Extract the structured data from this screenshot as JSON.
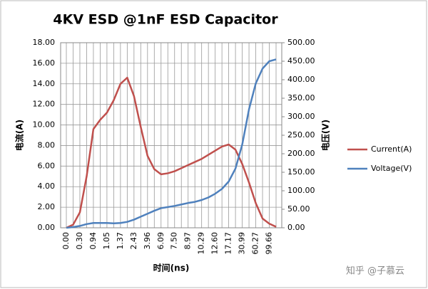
{
  "chart_data": {
    "type": "line",
    "title": "4KV ESD @1nF ESD Capacitor",
    "xlabel": "时间(ns)",
    "ylabel": "电流(A)",
    "y2label": "电压(V)",
    "categories": [
      "0.00",
      null,
      "0.30",
      null,
      "0.94",
      null,
      "1.05",
      null,
      "1.37",
      null,
      "2.43",
      null,
      "3.96",
      null,
      "6.09",
      null,
      "7.50",
      null,
      "8.97",
      null,
      "10.29",
      null,
      "12.60",
      null,
      "17.17",
      null,
      "30.99",
      null,
      "60.27",
      null,
      "99.66",
      null
    ],
    "series": [
      {
        "name": "Current(A)",
        "color": "#c0504d",
        "values": [
          0,
          0.3,
          1.5,
          5,
          9.6,
          10.5,
          11.2,
          12.4,
          14.0,
          14.6,
          12.8,
          9.8,
          7.0,
          5.7,
          5.2,
          5.3,
          5.5,
          5.8,
          6.1,
          6.4,
          6.7,
          7.1,
          7.5,
          7.9,
          8.1,
          7.6,
          6.2,
          4.4,
          2.4,
          0.9,
          0.4,
          0.1
        ]
      },
      {
        "name": "Voltage(V)",
        "color": "#4f81bd",
        "axis": "y2",
        "values": [
          0,
          2,
          5,
          10,
          13,
          13,
          13,
          12,
          13,
          16,
          22,
          30,
          38,
          46,
          53,
          56,
          59,
          63,
          67,
          70,
          75,
          82,
          92,
          105,
          125,
          160,
          225,
          320,
          390,
          430,
          450,
          455
        ]
      }
    ],
    "ylim": [
      0,
      18
    ],
    "yticks": [
      {
        "value": 0,
        "label": "0.00"
      },
      {
        "value": 2,
        "label": "2.00"
      },
      {
        "value": 4,
        "label": "4.00"
      },
      {
        "value": 6,
        "label": "6.00"
      },
      {
        "value": 8,
        "label": "8.00"
      },
      {
        "value": 10,
        "label": "10.00"
      },
      {
        "value": 12,
        "label": "12.00"
      },
      {
        "value": 14,
        "label": "14.00"
      },
      {
        "value": 16,
        "label": "16.00"
      },
      {
        "value": 18,
        "label": "18.00"
      }
    ],
    "y2lim": [
      0,
      500
    ],
    "y2ticks": [
      {
        "value": 0,
        "label": "0.00"
      },
      {
        "value": 50,
        "label": "50.00"
      },
      {
        "value": 100,
        "label": "100.00"
      },
      {
        "value": 150,
        "label": "150.00"
      },
      {
        "value": 200,
        "label": "200.00"
      },
      {
        "value": 250,
        "label": "250.00"
      },
      {
        "value": 300,
        "label": "300.00"
      },
      {
        "value": 350,
        "label": "350.00"
      },
      {
        "value": 400,
        "label": "400.00"
      },
      {
        "value": 450,
        "label": "450.00"
      },
      {
        "value": 500,
        "label": "500.00"
      }
    ],
    "grid": true,
    "legend": "right",
    "watermark": "知乎 @子慕云"
  }
}
